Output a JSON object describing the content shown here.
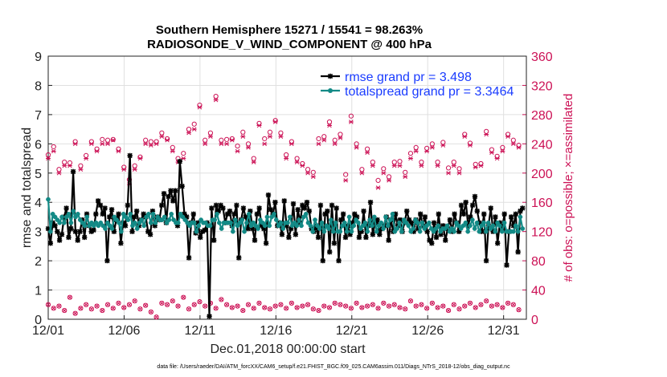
{
  "chart_data": {
    "type": "line",
    "title": "Southern Hemisphere 15271 / 15541 = 98.263%",
    "subtitle": "RADIOSONDE_V_WIND_COMPONENT @ 400 hPa",
    "xlabel": "Dec.01,2018 00:00:00 start",
    "ylabel": "rmse and totalspread",
    "ylabel_right": "# of obs: o=possible; ×=assimilated",
    "footer": "data file: /Users/raeder/DAI/ATM_forcXX/CAM6_setup/f.e21.FHIST_BGC.f09_025.CAM6assim.011/Diags_NTrS_2018-12/obs_diag_output.nc",
    "x_ticks": [
      "12/01",
      "12/06",
      "12/11",
      "12/16",
      "12/21",
      "12/26",
      "12/31"
    ],
    "y_ticks": [
      "0",
      "1",
      "2",
      "3",
      "4",
      "5",
      "6",
      "7",
      "8",
      "9"
    ],
    "y_right_ticks": [
      "0",
      "40",
      "80",
      "120",
      "160",
      "200",
      "240",
      "280",
      "320",
      "360"
    ],
    "xlim": [
      0,
      31.5
    ],
    "ylim": [
      0,
      9
    ],
    "ylim_right": [
      0,
      360
    ],
    "series": [
      {
        "name": "rmse",
        "legend": "rmse grand pr = 3.498",
        "color": "#000000",
        "values": [
          3.1,
          2.6,
          3.3,
          3.2,
          3.0,
          2.7,
          2.9,
          3.5,
          3.8,
          2.8,
          3.1,
          5.05,
          3.0,
          2.7,
          3.0,
          3.4,
          2.8,
          3.6,
          3.2,
          3.0,
          3.05,
          3.6,
          4.05,
          3.9,
          3.6,
          3.8,
          2.0,
          3.5,
          3.75,
          3.0,
          3.4,
          3.6,
          2.6,
          3.3,
          3.2,
          3.9,
          5.6,
          3.0,
          3.5,
          3.7,
          3.2,
          3.4,
          3.6,
          3.5,
          3.0,
          2.9,
          3.7,
          3.2,
          3.5,
          3.4,
          3.9,
          4.3,
          3.3,
          4.2,
          4.4,
          4.05,
          4.4,
          3.2,
          5.4,
          4.55,
          3.6,
          3.5,
          2.1,
          3.3,
          3.6,
          2.95,
          3.3,
          2.8,
          3.0,
          3.05,
          3.3,
          0.1,
          3.8,
          2.7,
          3.9,
          3.7,
          3.9,
          3.8,
          3.3,
          3.6,
          3.7,
          3.2,
          3.6,
          3.9,
          2.1,
          3.4,
          3.8,
          3.5,
          3.1,
          3.7,
          3.1,
          2.7,
          3.6,
          3.8,
          3.2,
          3.1,
          2.6,
          4.25,
          3.75,
          3.6,
          4.0,
          3.2,
          3.3,
          2.9,
          4.05,
          3.2,
          2.8,
          3.1,
          3.95,
          2.9,
          3.75,
          3.3,
          3.9,
          3.8,
          4.0,
          3.7,
          3.1,
          3.0,
          3.2,
          2.8,
          3.9,
          2.0,
          3.6,
          3.7,
          2.3,
          3.9,
          2.6,
          3.8,
          2.0,
          3.4,
          3.6,
          2.8,
          3.2,
          2.9,
          3.3,
          3.6,
          3.5,
          2.8,
          3.0,
          3.7,
          2.8,
          3.2,
          4.0,
          2.9,
          3.3,
          3.4,
          2.9,
          3.1,
          3.2,
          3.5,
          2.7,
          3.4,
          3.0,
          3.6,
          3.2,
          3.4,
          3.0,
          3.3,
          3.7,
          3.4,
          3.3,
          3.0,
          3.4,
          3.1,
          3.6,
          3.2,
          3.5,
          3.0,
          2.7,
          2.6,
          3.3,
          2.8,
          3.6,
          2.9,
          3.2,
          2.7,
          3.1,
          3.4,
          3.0,
          3.6,
          3.3,
          3.0,
          3.9,
          3.6,
          4.0,
          3.2,
          3.5,
          3.9,
          4.2,
          3.7,
          3.3,
          3.0,
          3.6,
          2.0,
          3.2,
          3.8,
          3.0,
          3.5,
          2.6,
          3.3,
          3.1,
          3.6,
          1.85,
          3.0,
          3.5,
          3.2,
          3.6,
          2.3,
          3.7,
          3.8
        ]
      },
      {
        "name": "totalspread",
        "legend": "totalspread grand pr = 3.3464",
        "color": "#138a86",
        "values": [
          4.1,
          3.0,
          3.6,
          3.5,
          3.4,
          3.3,
          3.5,
          3.3,
          3.5,
          3.6,
          3.3,
          3.7,
          3.5,
          3.6,
          3.4,
          3.3,
          3.2,
          3.5,
          3.2,
          3.3,
          3.2,
          3.3,
          3.2,
          3.3,
          3.2,
          3.1,
          3.3,
          3.2,
          3.1,
          3.5,
          3.4,
          3.3,
          3.0,
          3.6,
          3.5,
          3.4,
          3.6,
          3.2,
          3.3,
          3.1,
          3.3,
          3.4,
          3.2,
          3.5,
          3.6,
          3.3,
          3.6,
          3.3,
          3.5,
          3.4,
          3.4,
          3.5,
          3.3,
          3.4,
          3.6,
          3.4,
          3.3,
          3.3,
          3.6,
          3.5,
          3.4,
          3.3,
          3.2,
          3.3,
          3.3,
          3.0,
          3.2,
          3.4,
          3.3,
          3.3,
          3.2,
          3.2,
          3.4,
          3.4,
          3.6,
          3.3,
          3.1,
          3.3,
          3.3,
          3.3,
          3.3,
          3.0,
          3.4,
          3.2,
          3.3,
          3.4,
          3.0,
          3.3,
          3.6,
          3.2,
          3.3,
          3.2,
          3.1,
          3.4,
          3.3,
          3.2,
          3.5,
          3.2,
          3.5,
          3.6,
          3.4,
          3.2,
          3.3,
          3.1,
          3.3,
          3.3,
          3.5,
          3.2,
          3.3,
          3.2,
          3.4,
          3.2,
          3.5,
          3.6,
          3.3,
          3.2,
          3.0,
          3.4,
          3.2,
          3.1,
          3.3,
          3.0,
          3.2,
          3.1,
          3.4,
          3.0,
          3.3,
          3.0,
          3.0,
          3.2,
          3.3,
          3.0,
          3.5,
          3.0,
          3.2,
          3.4,
          3.3,
          3.1,
          3.2,
          3.3,
          3.0,
          3.4,
          3.2,
          3.5,
          3.0,
          3.2,
          3.3,
          3.1,
          3.5,
          3.2,
          3.4,
          3.6,
          3.0,
          3.1,
          3.3,
          3.0,
          3.4,
          3.3,
          3.2,
          3.0,
          3.1,
          3.4,
          3.3,
          3.0,
          3.3,
          3.1,
          3.2,
          3.3,
          3.1,
          3.0,
          3.1,
          3.2,
          3.0,
          3.1,
          3.1,
          3.2,
          3.0,
          3.1,
          3.0,
          3.3,
          3.2,
          3.1,
          3.2,
          3.3,
          3.0,
          3.2,
          3.4,
          3.1,
          3.3,
          3.0,
          3.2,
          3.3,
          3.0,
          3.3,
          3.1,
          3.2,
          3.0,
          3.3,
          3.2,
          3.0,
          3.3,
          3.0,
          3.0,
          3.0,
          3.0,
          3.2,
          3.0,
          3.5,
          3.1
        ]
      }
    ],
    "obs_possible_right": [
      225,
      236,
      205,
      215,
      214,
      243,
      210,
      224,
      243,
      233,
      246,
      245,
      246,
      233,
      208,
      191,
      210,
      222,
      245,
      243,
      243,
      255,
      247,
      235,
      220,
      227,
      260,
      267,
      293,
      245,
      255,
      305,
      245,
      246,
      247,
      237,
      256,
      240,
      220,
      268,
      247,
      256,
      272,
      255,
      225,
      243,
      220,
      213,
      205,
      201,
      247,
      250,
      270,
      245,
      253,
      198,
      278,
      240,
      205,
      233,
      215,
      190,
      206,
      195,
      215,
      216,
      201,
      227,
      235,
      215,
      234,
      240,
      215,
      242,
      207,
      215,
      206,
      253,
      241,
      212,
      213,
      257,
      232,
      223,
      235,
      253,
      245,
      238
    ],
    "obs_assimilated_right": [
      220,
      230,
      200,
      210,
      210,
      240,
      205,
      220,
      240,
      230,
      240,
      240,
      245,
      230,
      205,
      185,
      205,
      220,
      240,
      238,
      240,
      250,
      245,
      230,
      215,
      220,
      255,
      260,
      290,
      240,
      250,
      300,
      240,
      240,
      245,
      230,
      250,
      235,
      215,
      265,
      240,
      250,
      270,
      250,
      220,
      240,
      215,
      210,
      200,
      195,
      240,
      245,
      265,
      240,
      248,
      190,
      270,
      235,
      200,
      228,
      210,
      180,
      200,
      190,
      210,
      210,
      195,
      220,
      230,
      210,
      230,
      235,
      210,
      238,
      200,
      210,
      200,
      250,
      238,
      208,
      210,
      253,
      228,
      220,
      230,
      250,
      240,
      235
    ],
    "obs_low_possible": [
      20,
      15,
      18,
      12,
      30,
      8,
      15,
      20,
      14,
      18,
      12,
      20,
      15,
      22,
      16,
      20,
      25,
      14,
      19,
      10,
      3,
      22,
      20,
      25,
      18,
      30,
      14,
      20,
      24,
      18,
      22,
      15,
      27,
      20,
      16,
      18,
      12,
      20,
      15,
      22,
      16,
      14,
      18,
      20,
      15,
      22,
      16,
      18,
      20,
      14,
      12,
      18,
      16,
      22,
      20,
      18,
      15,
      22,
      16,
      18,
      20,
      15,
      22,
      18,
      20,
      16,
      14,
      25,
      18,
      20,
      15,
      22,
      16,
      18,
      12,
      20,
      14,
      18,
      22,
      16,
      20,
      25,
      18,
      20,
      16,
      22,
      20,
      13
    ]
  }
}
